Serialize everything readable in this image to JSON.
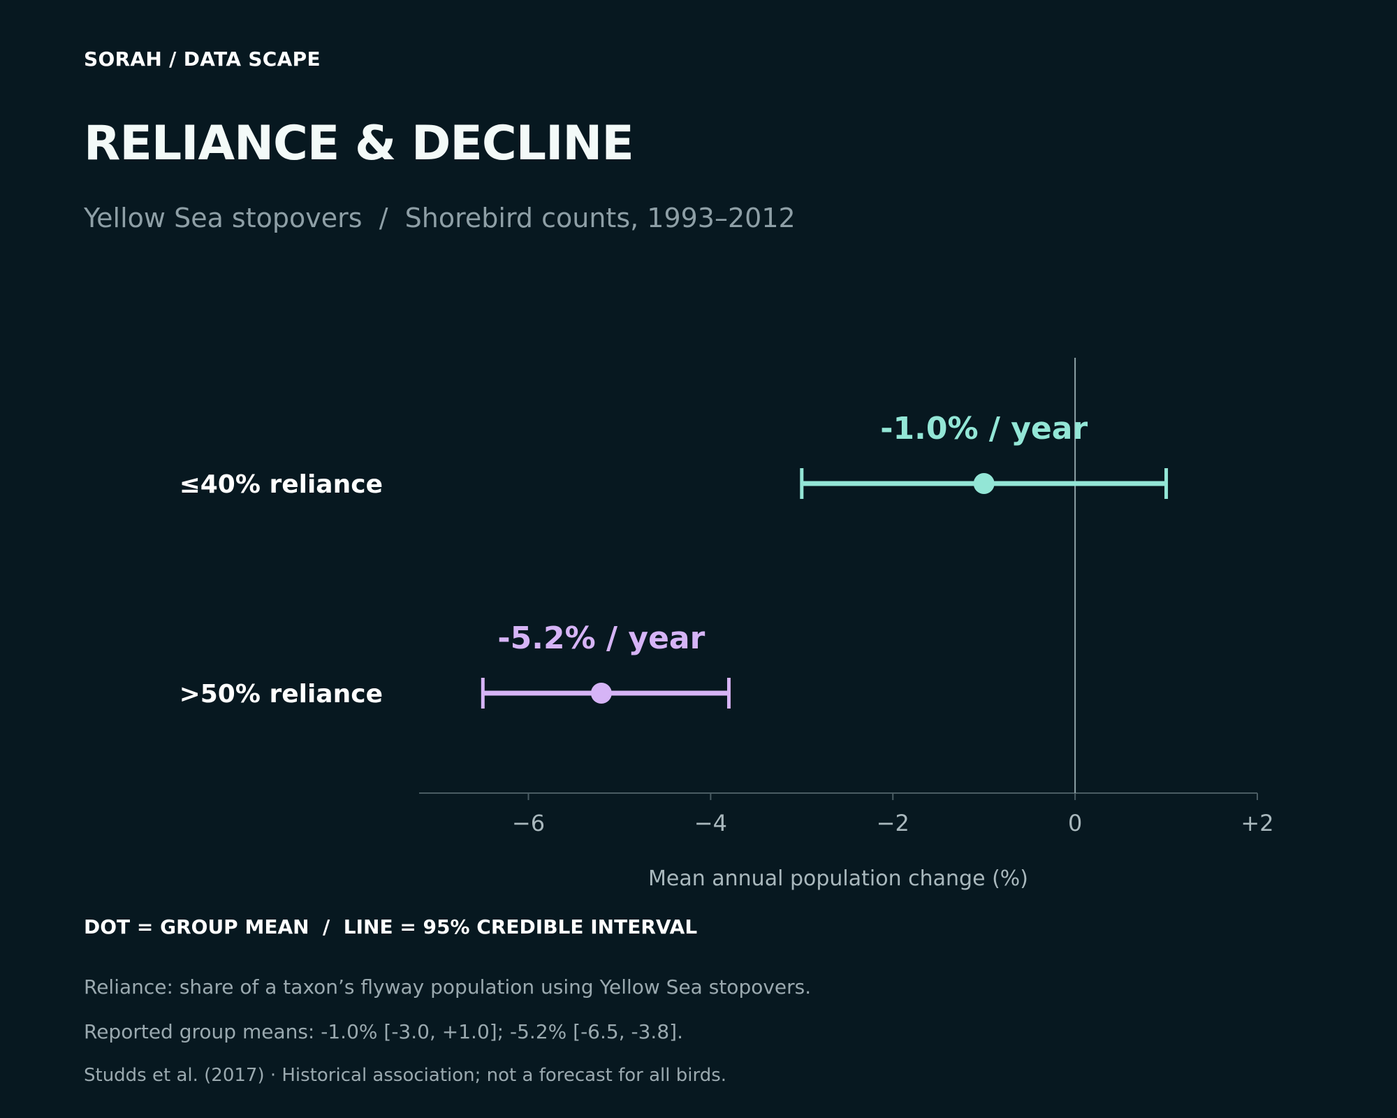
{
  "header": {
    "brand": "SORAH / DATA SCAPE",
    "title": "RELIANCE & DECLINE",
    "subtitle": "Yellow Sea stopovers  /  Shorebird counts, 1993–2012"
  },
  "chart_data": {
    "type": "dot-interval",
    "x": {
      "label": "Mean annual population change (%)",
      "range": [
        -7.2,
        2
      ],
      "ticks": [
        -6,
        -4,
        -2,
        0,
        2
      ],
      "tick_labels": [
        "−6",
        "−4",
        "−2",
        "0",
        "+2"
      ],
      "reference_line": 0
    },
    "groups": [
      {
        "label": "≤40% reliance",
        "mean": -1.0,
        "ci": [
          -3.0,
          1.0
        ],
        "annotation": "-1.0% / year",
        "color": "#93e6d6"
      },
      {
        "label": ">50% reliance",
        "mean": -5.2,
        "ci": [
          -6.5,
          -3.8
        ],
        "annotation": "-5.2% / year",
        "color": "#d6b4f6"
      }
    ],
    "colors": {
      "axis": "#4a5c63",
      "zero_line": "#8fa3a8",
      "tick_text": "#a9b8bd",
      "group_label": "#ffffff"
    }
  },
  "legend": {
    "text": "DOT = GROUP MEAN  /  LINE = 95% CREDIBLE INTERVAL"
  },
  "notes": {
    "definition": "Reliance: share of a taxon’s flyway population using Yellow Sea stopovers.",
    "reported": "Reported group means: -1.0% [-3.0, +1.0]; -5.2% [-6.5, -3.8].",
    "source": "Studds et al. (2017) · Historical association; not a forecast for all birds."
  }
}
